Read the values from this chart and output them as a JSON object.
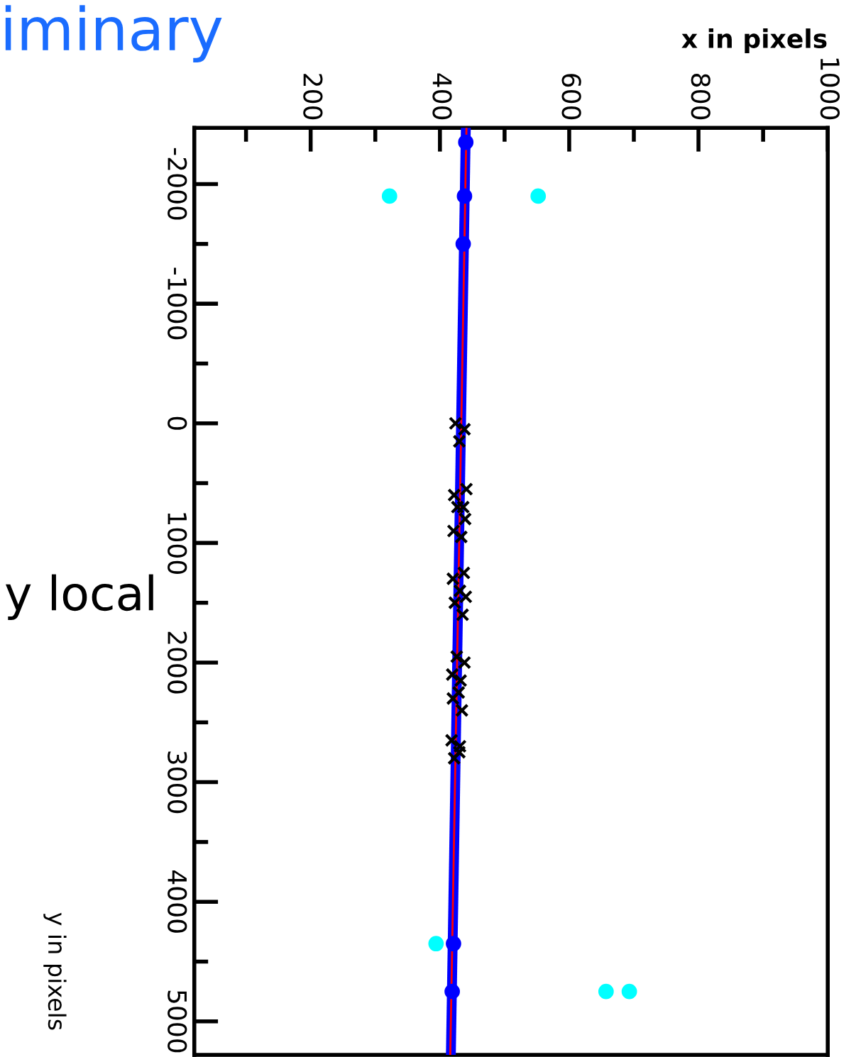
{
  "chart_data": {
    "type": "line",
    "xlabel": "x in pixels",
    "ylabel": "y in pixels",
    "xlim": [
      20,
      1000
    ],
    "xticks": [
      200,
      400,
      600,
      800,
      1000
    ],
    "ylim": [
      5280,
      -2470
    ],
    "yticks": [
      -2000,
      -1000,
      0,
      1000,
      2000,
      3000,
      4000,
      5000
    ],
    "annotations": [
      "iminary",
      "y local"
    ],
    "legend": false,
    "grid": false,
    "series": [
      {
        "type": "scatter",
        "color": "#000000",
        "marker": "cross",
        "x": [
          424,
          438,
          430,
          441,
          422,
          436,
          427,
          439,
          421,
          433,
          437,
          420,
          431,
          440,
          423,
          435,
          426,
          438,
          419,
          432,
          429,
          420,
          434,
          418,
          431,
          422,
          430
        ],
        "values": [
          0,
          50,
          150,
          550,
          600,
          700,
          700,
          800,
          900,
          950,
          1250,
          1300,
          1400,
          1450,
          1500,
          1600,
          1950,
          2000,
          2100,
          2150,
          2250,
          2300,
          2400,
          2650,
          2700,
          2800,
          2750
        ]
      },
      {
        "color": "#ff0000",
        "x": [
          441,
          416
        ],
        "values": [
          -2470,
          5280
        ]
      },
      {
        "color": "#0000ff",
        "x": [
          440,
          417
        ],
        "values": [
          -2450,
          5250
        ]
      },
      {
        "type": "scatter",
        "color": "#0000ff",
        "marker": "circle",
        "x": [
          440,
          438,
          436,
          421,
          419
        ],
        "values": [
          -2350,
          -1900,
          -1500,
          4350,
          4750
        ]
      },
      {
        "type": "scatter",
        "color": "#00ffff",
        "marker": "circle",
        "x": [
          322,
          552,
          394,
          657,
          693
        ],
        "values": [
          -1900,
          -1900,
          4350,
          4750,
          4750
        ]
      }
    ]
  }
}
